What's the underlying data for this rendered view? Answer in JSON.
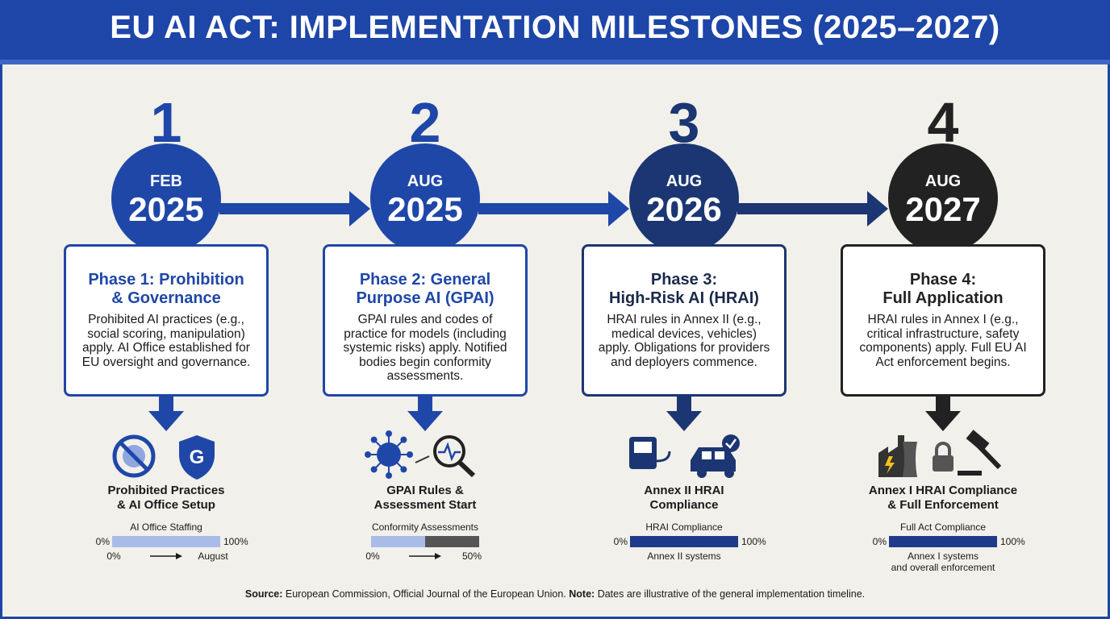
{
  "header": {
    "title": "EU AI ACT: IMPLEMENTATION MILESTONES (2025–2027)"
  },
  "phases": [
    {
      "number": "1",
      "month": "FEB",
      "year": "2025",
      "title": [
        "Phase 1: Prohibition",
        "& Governance"
      ],
      "description": "Prohibited AI practices (e.g., social scoring, manipulation) apply. AI Office established for EU oversight and governance.",
      "caption": [
        "Prohibited Practices",
        "& AI Office Setup"
      ],
      "bar_title": "AI Office Staffing",
      "bar_min": "0%",
      "bar_max": "100%",
      "bar_from": "0%",
      "bar_to": "August"
    },
    {
      "number": "2",
      "month": "AUG",
      "year": "2025",
      "title": [
        "Phase 2: General",
        "Purpose AI (GPAI)"
      ],
      "description": "GPAI rules and codes of practice for models (including systemic risks) apply. Notified bodies begin conformity assessments.",
      "caption": [
        "GPAI Rules &",
        "Assessment Start"
      ],
      "bar_title": "Conformity Assessments",
      "bar_from": "0%",
      "bar_to": "50%"
    },
    {
      "number": "3",
      "month": "AUG",
      "year": "2026",
      "title": [
        "Phase 3:",
        "High-Risk AI (HRAI)"
      ],
      "description": "HRAI rules in Annex II (e.g., medical devices, vehicles) apply. Obligations for providers and deployers commence.",
      "caption": [
        "Annex II HRAI",
        "Compliance"
      ],
      "bar_title": "HRAI Compliance",
      "bar_min": "0%",
      "bar_max": "100%",
      "bar_note": [
        "Annex II systems"
      ]
    },
    {
      "number": "4",
      "month": "AUG",
      "year": "2027",
      "title": [
        "Phase 4:",
        "Full Application"
      ],
      "description": "HRAI rules in Annex I (e.g., critical infrastructure, safety components) apply. Full EU AI Act enforcement begins.",
      "caption": [
        "Annex I HRAI Compliance",
        "& Full Enforcement"
      ],
      "bar_title": "Full Act Compliance",
      "bar_min": "0%",
      "bar_max": "100%",
      "bar_note": [
        "Annex I systems",
        "and overall enforcement"
      ]
    }
  ],
  "footer": {
    "source_label": "Source:",
    "source": "European Commission, Official Journal of the European Union.",
    "note_label": "Note:",
    "note": "Dates are illustrative of the general implementation timeline."
  }
}
